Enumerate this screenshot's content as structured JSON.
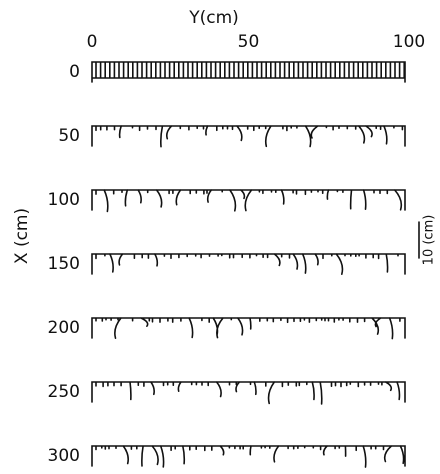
{
  "figure": {
    "y_axis": {
      "label": "Y(cm)",
      "ticks": [
        0,
        50,
        100
      ],
      "lim": [
        0,
        100
      ]
    },
    "x_axis": {
      "label": "X (cm)",
      "ticks": [
        0,
        50,
        100,
        150,
        200,
        250,
        300
      ]
    },
    "scale_bar": {
      "label": "10 (cm)"
    }
  }
}
